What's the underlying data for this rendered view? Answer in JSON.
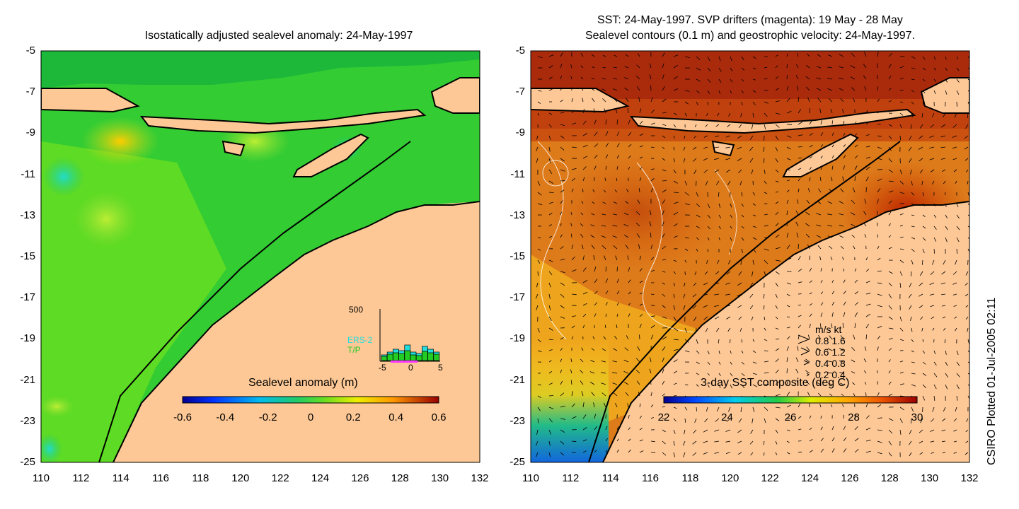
{
  "left_panel": {
    "title": "Isostatically adjusted sealevel anomaly: 24-May-1997",
    "colorbar": {
      "label": "Sealevel anomaly (m)",
      "ticks": [
        "-0.6",
        "-0.4",
        "-0.2",
        "0",
        "0.2",
        "0.4",
        "0.6"
      ]
    },
    "histogram": {
      "ymax_label": "500",
      "xticks": [
        "-5",
        "0",
        "5"
      ],
      "series": [
        {
          "name": "ERS-2",
          "color": "#22dddd"
        },
        {
          "name": "T/P",
          "color": "#22cc22"
        }
      ]
    }
  },
  "right_panel": {
    "title_line1": "SST: 24-May-1997. SVP drifters (magenta): 19 May - 28 May",
    "title_line2": "Sealevel contours (0.1 m) and geostrophic velocity: 24-May-1997.",
    "colorbar": {
      "label": "3-day SST composite (deg C)",
      "ticks": [
        "22",
        "24",
        "26",
        "28",
        "30"
      ]
    },
    "velocity_legend": {
      "header": "m/s  kt",
      "rows": [
        "0.8  1.6",
        "0.6  1.2",
        "0.4  0.8",
        "0.2  0.4"
      ]
    }
  },
  "axes": {
    "y_ticks": [
      "-5",
      "-7",
      "-9",
      "-11",
      "-13",
      "-15",
      "-17",
      "-19",
      "-21",
      "-23",
      "-25"
    ],
    "x_ticks": [
      "110",
      "112",
      "114",
      "116",
      "118",
      "120",
      "122",
      "124",
      "126",
      "128",
      "130",
      "132"
    ]
  },
  "credit": "CSIRO Plotted 01-Jul-2005 02:11",
  "colors": {
    "land": "#fdc896",
    "sla_base": "#22cc44",
    "sst_base": "#dd7a1a"
  }
}
